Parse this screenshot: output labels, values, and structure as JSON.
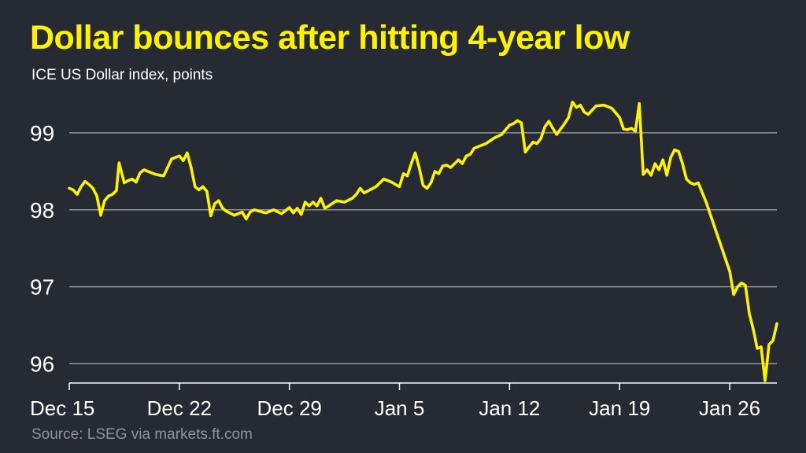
{
  "header": {
    "title": "Dollar bounces after hitting 4-year low",
    "subtitle": "ICE US Dollar index, points"
  },
  "footer": {
    "source": "Source: LSEG via markets.ft.com"
  },
  "colors": {
    "background": "#262a33",
    "line": "#fff200",
    "gridline": "#8f929b",
    "text": "#ffffff",
    "source_text": "#8f929b"
  },
  "chart_data": {
    "type": "line",
    "title": "Dollar bounces after hitting 4-year low",
    "subtitle": "ICE US Dollar index, points",
    "xlabel": "",
    "ylabel": "",
    "x_tick_labels": [
      "Dec 15",
      "Dec 22",
      "Dec 29",
      "Jan 5",
      "Jan 12",
      "Jan 19",
      "Jan 26"
    ],
    "y_tick_labels": [
      "96",
      "97",
      "98",
      "99"
    ],
    "y_ticks": [
      96,
      97,
      98,
      99
    ],
    "ylim": [
      95.75,
      99.5
    ],
    "xlim": [
      "2025-12-15",
      "2026-01-29"
    ],
    "grid": "horizontal",
    "legend": "none",
    "series": [
      {
        "x": [
          "2025-12-15",
          "2025-12-16",
          "2025-12-17",
          "2025-12-18",
          "2025-12-19",
          "2025-12-22",
          "2025-12-23",
          "2025-12-24",
          "2025-12-26",
          "2025-12-29",
          "2025-12-30",
          "2025-12-31",
          "2026-01-02",
          "2026-01-05",
          "2026-01-06",
          "2026-01-07",
          "2026-01-08",
          "2026-01-09",
          "2026-01-12",
          "2026-01-13",
          "2026-01-14",
          "2026-01-15",
          "2026-01-16",
          "2026-01-19",
          "2026-01-20",
          "2026-01-21",
          "2026-01-22",
          "2026-01-23",
          "2026-01-26",
          "2026-01-27",
          "2026-01-28",
          "2026-01-29"
        ],
        "values": [
          98.28,
          98.3,
          98.15,
          98.38,
          98.5,
          98.68,
          98.28,
          98.07,
          97.96,
          97.99,
          98.07,
          98.17,
          98.3,
          98.68,
          98.4,
          98.55,
          98.68,
          98.98,
          99.12,
          98.85,
          99.1,
          99.08,
          99.32,
          99.05,
          98.55,
          98.6,
          98.78,
          98.4,
          97.1,
          97.02,
          96.22,
          96.5
        ],
        "intraday": [
          [
            "2025-12-15T00:00",
            98.28
          ],
          [
            "2025-12-15T06:00",
            98.26
          ],
          [
            "2025-12-15T12:00",
            98.2
          ],
          [
            "2025-12-15T18:00",
            98.3
          ],
          [
            "2025-12-16T00:00",
            98.37
          ],
          [
            "2025-12-16T06:00",
            98.33
          ],
          [
            "2025-12-16T12:00",
            98.28
          ],
          [
            "2025-12-16T18:00",
            98.18
          ],
          [
            "2025-12-17T00:00",
            97.93
          ],
          [
            "2025-12-17T06:00",
            98.12
          ],
          [
            "2025-12-17T12:00",
            98.18
          ],
          [
            "2025-12-17T18:00",
            98.2
          ],
          [
            "2025-12-18T00:00",
            98.25
          ],
          [
            "2025-12-18T04:00",
            98.61
          ],
          [
            "2025-12-18T12:00",
            98.35
          ],
          [
            "2025-12-18T18:00",
            98.38
          ],
          [
            "2025-12-19T00:00",
            98.4
          ],
          [
            "2025-12-19T06:00",
            98.36
          ],
          [
            "2025-12-19T12:00",
            98.48
          ],
          [
            "2025-12-19T18:00",
            98.52
          ],
          [
            "2025-12-20T12:00",
            98.46
          ],
          [
            "2025-12-21T00:00",
            98.44
          ],
          [
            "2025-12-21T12:00",
            98.66
          ],
          [
            "2025-12-22T00:00",
            98.7
          ],
          [
            "2025-12-22T06:00",
            98.64
          ],
          [
            "2025-12-22T12:00",
            98.74
          ],
          [
            "2025-12-22T18:00",
            98.55
          ],
          [
            "2025-12-23T00:00",
            98.3
          ],
          [
            "2025-12-23T06:00",
            98.26
          ],
          [
            "2025-12-23T12:00",
            98.3
          ],
          [
            "2025-12-23T18:00",
            98.24
          ],
          [
            "2025-12-24T00:00",
            97.92
          ],
          [
            "2025-12-24T06:00",
            98.08
          ],
          [
            "2025-12-24T12:00",
            98.12
          ],
          [
            "2025-12-24T18:00",
            98.02
          ],
          [
            "2025-12-25T00:00",
            97.98
          ],
          [
            "2025-12-25T12:00",
            97.93
          ],
          [
            "2025-12-26T00:00",
            97.97
          ],
          [
            "2025-12-26T06:00",
            97.88
          ],
          [
            "2025-12-26T12:00",
            97.97
          ],
          [
            "2025-12-26T18:00",
            98.0
          ],
          [
            "2025-12-27T12:00",
            97.96
          ],
          [
            "2025-12-28T00:00",
            98.0
          ],
          [
            "2025-12-28T12:00",
            97.95
          ],
          [
            "2025-12-29T00:00",
            98.03
          ],
          [
            "2025-12-29T06:00",
            97.96
          ],
          [
            "2025-12-29T12:00",
            98.02
          ],
          [
            "2025-12-29T18:00",
            97.94
          ],
          [
            "2025-12-30T00:00",
            98.1
          ],
          [
            "2025-12-30T06:00",
            98.05
          ],
          [
            "2025-12-30T12:00",
            98.1
          ],
          [
            "2025-12-30T18:00",
            98.05
          ],
          [
            "2025-12-31T00:00",
            98.15
          ],
          [
            "2025-12-31T06:00",
            98.02
          ],
          [
            "2025-12-31T12:00",
            98.05
          ],
          [
            "2026-01-01T00:00",
            98.12
          ],
          [
            "2026-01-01T12:00",
            98.1
          ],
          [
            "2026-01-02T00:00",
            98.15
          ],
          [
            "2026-01-02T06:00",
            98.2
          ],
          [
            "2026-01-02T12:00",
            98.28
          ],
          [
            "2026-01-02T18:00",
            98.22
          ],
          [
            "2026-01-03T12:00",
            98.3
          ],
          [
            "2026-01-04T00:00",
            98.4
          ],
          [
            "2026-01-04T12:00",
            98.36
          ],
          [
            "2026-01-05T00:00",
            98.3
          ],
          [
            "2026-01-05T06:00",
            98.47
          ],
          [
            "2026-01-05T12:00",
            98.44
          ],
          [
            "2026-01-05T18:00",
            98.6
          ],
          [
            "2026-01-06T00:00",
            98.74
          ],
          [
            "2026-01-06T06:00",
            98.55
          ],
          [
            "2026-01-06T12:00",
            98.32
          ],
          [
            "2026-01-06T18:00",
            98.28
          ],
          [
            "2026-01-07T00:00",
            98.35
          ],
          [
            "2026-01-07T06:00",
            98.5
          ],
          [
            "2026-01-07T12:00",
            98.47
          ],
          [
            "2026-01-07T18:00",
            98.57
          ],
          [
            "2026-01-08T00:00",
            98.58
          ],
          [
            "2026-01-08T06:00",
            98.55
          ],
          [
            "2026-01-08T12:00",
            98.6
          ],
          [
            "2026-01-08T18:00",
            98.65
          ],
          [
            "2026-01-09T00:00",
            98.6
          ],
          [
            "2026-01-09T06:00",
            98.7
          ],
          [
            "2026-01-09T12:00",
            98.72
          ],
          [
            "2026-01-09T18:00",
            98.8
          ],
          [
            "2026-01-10T12:00",
            98.86
          ],
          [
            "2026-01-11T00:00",
            98.93
          ],
          [
            "2026-01-11T12:00",
            98.98
          ],
          [
            "2026-01-12T00:00",
            99.1
          ],
          [
            "2026-01-12T06:00",
            99.12
          ],
          [
            "2026-01-12T12:00",
            99.16
          ],
          [
            "2026-01-12T18:00",
            99.13
          ],
          [
            "2026-01-13T00:00",
            98.75
          ],
          [
            "2026-01-13T06:00",
            98.82
          ],
          [
            "2026-01-13T12:00",
            98.88
          ],
          [
            "2026-01-13T18:00",
            98.86
          ],
          [
            "2026-01-14T00:00",
            98.93
          ],
          [
            "2026-01-14T06:00",
            99.08
          ],
          [
            "2026-01-14T12:00",
            99.15
          ],
          [
            "2026-01-14T18:00",
            99.06
          ],
          [
            "2026-01-15T00:00",
            98.98
          ],
          [
            "2026-01-15T06:00",
            99.05
          ],
          [
            "2026-01-15T12:00",
            99.12
          ],
          [
            "2026-01-15T18:00",
            99.2
          ],
          [
            "2026-01-16T00:00",
            99.4
          ],
          [
            "2026-01-16T06:00",
            99.33
          ],
          [
            "2026-01-16T12:00",
            99.36
          ],
          [
            "2026-01-16T18:00",
            99.27
          ],
          [
            "2026-01-17T00:00",
            99.24
          ],
          [
            "2026-01-17T12:00",
            99.35
          ],
          [
            "2026-01-18T00:00",
            99.36
          ],
          [
            "2026-01-18T12:00",
            99.32
          ],
          [
            "2026-01-19T00:00",
            99.2
          ],
          [
            "2026-01-19T06:00",
            99.05
          ],
          [
            "2026-01-19T12:00",
            99.04
          ],
          [
            "2026-01-19T18:00",
            99.06
          ],
          [
            "2026-01-20T00:00",
            99.02
          ],
          [
            "2026-01-20T06:00",
            99.38
          ],
          [
            "2026-01-20T12:00",
            98.46
          ],
          [
            "2026-01-20T18:00",
            98.52
          ],
          [
            "2026-01-21T00:00",
            98.45
          ],
          [
            "2026-01-21T06:00",
            98.6
          ],
          [
            "2026-01-21T12:00",
            98.52
          ],
          [
            "2026-01-21T18:00",
            98.65
          ],
          [
            "2026-01-22T00:00",
            98.45
          ],
          [
            "2026-01-22T06:00",
            98.68
          ],
          [
            "2026-01-22T12:00",
            98.78
          ],
          [
            "2026-01-22T18:00",
            98.76
          ],
          [
            "2026-01-23T00:00",
            98.6
          ],
          [
            "2026-01-23T06:00",
            98.4
          ],
          [
            "2026-01-23T12:00",
            98.35
          ],
          [
            "2026-01-23T18:00",
            98.33
          ],
          [
            "2026-01-24T00:00",
            98.35
          ],
          [
            "2026-01-24T12:00",
            98.1
          ],
          [
            "2026-01-25T00:00",
            97.8
          ],
          [
            "2026-01-25T12:00",
            97.5
          ],
          [
            "2026-01-26T00:00",
            97.2
          ],
          [
            "2026-01-26T06:00",
            96.9
          ],
          [
            "2026-01-26T12:00",
            97.0
          ],
          [
            "2026-01-26T18:00",
            97.05
          ],
          [
            "2026-01-27T00:00",
            97.02
          ],
          [
            "2026-01-27T06:00",
            96.65
          ],
          [
            "2026-01-27T12:00",
            96.45
          ],
          [
            "2026-01-27T18:00",
            96.2
          ],
          [
            "2026-01-28T00:00",
            96.22
          ],
          [
            "2026-01-28T06:00",
            95.78
          ],
          [
            "2026-01-28T12:00",
            96.25
          ],
          [
            "2026-01-28T18:00",
            96.3
          ],
          [
            "2026-01-29T00:00",
            96.52
          ]
        ]
      }
    ]
  }
}
